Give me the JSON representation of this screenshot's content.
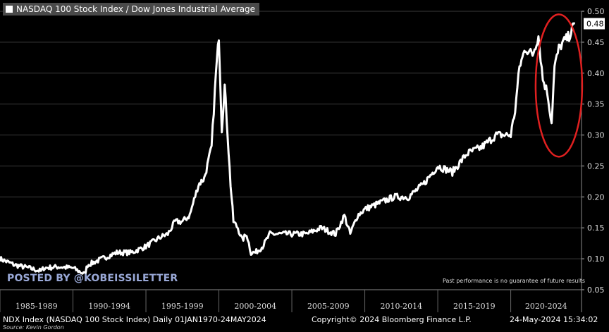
{
  "legend": {
    "label": "NASDAQ 100 Stock Index / Dow Jones Industrial Average"
  },
  "watermark": "POSTED BY @KOBEISSILETTER",
  "disclaimer": "Past performance is no guarantee of future results",
  "footer": {
    "left": "NDX Index (NASDAQ 100 Stock Index) Daily 01JAN1970-24MAY2024",
    "center": "Copyright© 2024 Bloomberg Finance L.P.",
    "right": "24-May-2024 15:34:02"
  },
  "source": "Source: Kevin Gordon",
  "colors": {
    "background": "#000000",
    "line": "#ffffff",
    "highlight": "#e02020",
    "grid": "#3a3a3a"
  },
  "chart_data": {
    "type": "line",
    "ylim": [
      0.05,
      0.5
    ],
    "yticks": [
      "0.05",
      "0.10",
      "0.15",
      "0.20",
      "0.25",
      "0.30",
      "0.35",
      "0.40",
      "0.45",
      "0.50"
    ],
    "x_periods": [
      "1985-1989",
      "1990-1994",
      "1995-1999",
      "2000-2004",
      "2005-2009",
      "2010-2014",
      "2015-2019",
      "2020-2024"
    ],
    "last_value_label": "0.48",
    "annotation": "red ellipse around 2022-2024",
    "series": [
      {
        "x": [
          1985.0,
          1986,
          1987,
          1987.8,
          1988,
          1989,
          1990,
          1990.8,
          1991,
          1992,
          1993,
          1994,
          1995,
          1996,
          1996.5,
          1997,
          1997.5,
          1998,
          1998.6,
          1999,
          1999.5,
          1999.8,
          2000.0,
          2000.2,
          2000.4,
          2000.6,
          2000.8,
          2001.0,
          2001.3,
          2001.6,
          2001.9,
          2002.2,
          2002.5,
          2002.75,
          2003.0,
          2003.5,
          2004,
          2005,
          2006,
          2007,
          2008,
          2008.6,
          2009.0,
          2009.5,
          2010,
          2011,
          2012,
          2013,
          2014,
          2015,
          2016,
          2017,
          2018,
          2019,
          2020.0,
          2020.3,
          2020.6,
          2021.0,
          2021.5,
          2021.9,
          2022.2,
          2022.5,
          2022.8,
          2023.0,
          2023.3,
          2023.6,
          2024.0,
          2024.4
        ],
        "y": [
          0.1,
          0.09,
          0.085,
          0.08,
          0.085,
          0.087,
          0.085,
          0.075,
          0.09,
          0.1,
          0.11,
          0.11,
          0.12,
          0.135,
          0.14,
          0.16,
          0.16,
          0.17,
          0.22,
          0.23,
          0.28,
          0.4,
          0.46,
          0.31,
          0.38,
          0.3,
          0.22,
          0.16,
          0.15,
          0.13,
          0.14,
          0.11,
          0.11,
          0.115,
          0.12,
          0.14,
          0.14,
          0.14,
          0.14,
          0.15,
          0.14,
          0.17,
          0.14,
          0.17,
          0.18,
          0.19,
          0.2,
          0.2,
          0.22,
          0.25,
          0.24,
          0.27,
          0.28,
          0.3,
          0.3,
          0.34,
          0.41,
          0.44,
          0.43,
          0.46,
          0.39,
          0.37,
          0.32,
          0.41,
          0.44,
          0.45,
          0.46,
          0.48
        ]
      }
    ]
  }
}
